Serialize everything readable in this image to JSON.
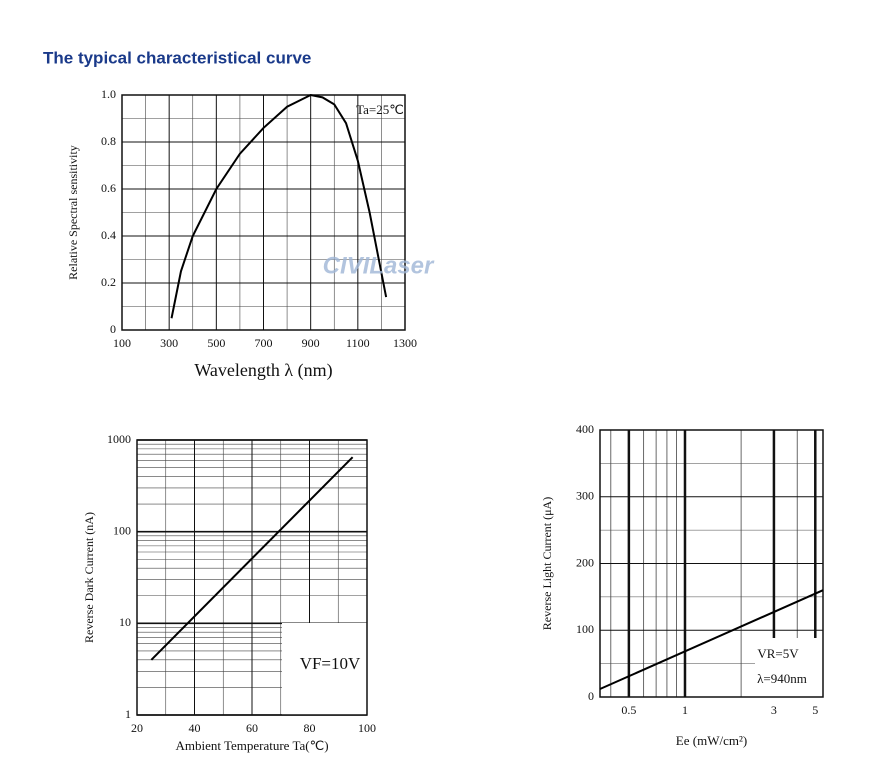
{
  "heading": "The typical characteristical curve",
  "watermark": "CIVILaser",
  "chart_data": [
    {
      "type": "line",
      "x_label": "Wavelength λ (nm)",
      "y_label": "Relative Spectral sensitivity",
      "annotations": [
        "Ta=25℃"
      ],
      "x": [
        310,
        350,
        400,
        500,
        600,
        700,
        800,
        900,
        950,
        1000,
        1050,
        1100,
        1150,
        1220
      ],
      "values": [
        0.05,
        0.25,
        0.4,
        0.6,
        0.75,
        0.86,
        0.95,
        1.0,
        0.99,
        0.96,
        0.88,
        0.72,
        0.5,
        0.14
      ],
      "color": "#000000",
      "xlim": [
        100,
        1300
      ],
      "xticks": [
        100,
        300,
        500,
        700,
        900,
        1100,
        1300
      ],
      "ylim": [
        0,
        1
      ],
      "yticks": [
        0,
        0.2,
        0.4,
        0.6,
        0.8,
        {
          "value": 1,
          "label": "1.0"
        }
      ],
      "grid": true,
      "minor_grid": true
    },
    {
      "type": "line",
      "x_label": "Ambient Temperature  Ta(℃)",
      "y_label": "Reverse Dark Current (nA)",
      "annotations": [
        "VF=10V"
      ],
      "x": [
        25,
        95
      ],
      "values": [
        4,
        650
      ],
      "color": "#000000",
      "xlim": [
        20,
        100
      ],
      "xticks": [
        20,
        40,
        60,
        80,
        100
      ],
      "ylim": [
        1,
        1000
      ],
      "yticks": [
        1,
        10,
        100,
        1000
      ],
      "y_scale": "log",
      "grid": true,
      "minor_grid": true
    },
    {
      "type": "line",
      "x_label": "Ee (mW/cm²)",
      "y_label": "Reverse Light Current (μA)",
      "annotations": [
        "VR=5V",
        "λ=940nm"
      ],
      "x": [
        0.35,
        5.5
      ],
      "values": [
        12,
        160
      ],
      "color": "#000000",
      "xlim": [
        0.35,
        5.5
      ],
      "xticks": [
        0.5,
        1,
        3,
        5
      ],
      "x_scale": "log",
      "ylim": [
        0,
        400
      ],
      "yticks": [
        0,
        100,
        200,
        300,
        400
      ],
      "grid": true,
      "minor_grid": true
    }
  ]
}
